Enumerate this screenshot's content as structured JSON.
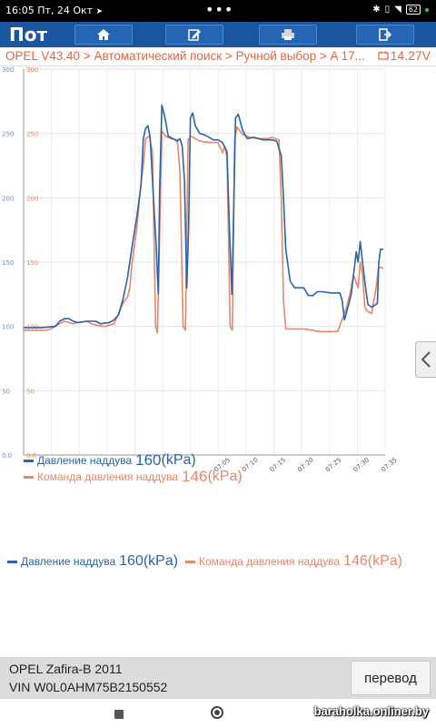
{
  "status_bar": {
    "time": "16:05",
    "date": "Пт, 24 Окт",
    "more": "•••",
    "battery": "62"
  },
  "header": {
    "title": "Пот",
    "buttons": [
      {
        "name": "home-icon"
      },
      {
        "name": "edit-icon"
      },
      {
        "name": "print-icon"
      },
      {
        "name": "exit-icon"
      }
    ],
    "bg_color": "#1a56a0"
  },
  "breadcrumb": {
    "path": "OPEL V43.40 > Автоматический поиск > Ручной выбор > A 17...",
    "voltage": "14.27V",
    "color": "#e8643c"
  },
  "chart_data": {
    "type": "line",
    "ylim": [
      0,
      300
    ],
    "y_ticks_left": [
      "300",
      "250",
      "200",
      "150",
      "100",
      "50",
      "0.0"
    ],
    "y_ticks_right": [
      "300",
      "250",
      "200",
      "150",
      "100",
      "50",
      "0.0"
    ],
    "x_ticks": [
      "07:05",
      "07:10",
      "07:15",
      "07:20",
      "07:25",
      "07:30",
      "07:35"
    ],
    "grid": true,
    "series": [
      {
        "name": "Давление наддува",
        "color": "#2a63aa",
        "points": [
          [
            0,
            99
          ],
          [
            4,
            99
          ],
          [
            7,
            100
          ],
          [
            8,
            104
          ],
          [
            9,
            106
          ],
          [
            10,
            106
          ],
          [
            11,
            104
          ],
          [
            12,
            103
          ],
          [
            14,
            104
          ],
          [
            16,
            104
          ],
          [
            17,
            102
          ],
          [
            19,
            103
          ],
          [
            20,
            105
          ],
          [
            21,
            109
          ],
          [
            22,
            121
          ],
          [
            23,
            138
          ],
          [
            24,
            162
          ],
          [
            25,
            184
          ],
          [
            26,
            210
          ],
          [
            26.5,
            246
          ],
          [
            27,
            254
          ],
          [
            27.5,
            256
          ],
          [
            28,
            247
          ],
          [
            28.6,
            208
          ],
          [
            29.3,
            165
          ],
          [
            29.8,
            125
          ],
          [
            30.1,
            205
          ],
          [
            30.6,
            272
          ],
          [
            31.3,
            262
          ],
          [
            32,
            248
          ],
          [
            33,
            246
          ],
          [
            34,
            244
          ],
          [
            34.6,
            246
          ],
          [
            35.1,
            240
          ],
          [
            35.6,
            213
          ],
          [
            36.1,
            130
          ],
          [
            36.5,
            175
          ],
          [
            36.9,
            262
          ],
          [
            37.4,
            266
          ],
          [
            38,
            256
          ],
          [
            39,
            250
          ],
          [
            40,
            249
          ],
          [
            42,
            245
          ],
          [
            43,
            245
          ],
          [
            44,
            243
          ],
          [
            45,
            236
          ],
          [
            45.6,
            170
          ],
          [
            46.1,
            125
          ],
          [
            46.5,
            192
          ],
          [
            46.9,
            262
          ],
          [
            47.5,
            265
          ],
          [
            48.5,
            252
          ],
          [
            49.5,
            246
          ],
          [
            51,
            247
          ],
          [
            53,
            245
          ],
          [
            55,
            245
          ],
          [
            56,
            244
          ],
          [
            57,
            233
          ],
          [
            57.5,
            200
          ],
          [
            58,
            160
          ],
          [
            59,
            135
          ],
          [
            60,
            130
          ],
          [
            62,
            130
          ],
          [
            63,
            124
          ],
          [
            64,
            124
          ],
          [
            65,
            127
          ],
          [
            66,
            127
          ],
          [
            68,
            126
          ],
          [
            69,
            126
          ],
          [
            70,
            126
          ],
          [
            70.5,
            120
          ],
          [
            71,
            105
          ],
          [
            72,
            118
          ],
          [
            72.5,
            125
          ],
          [
            73,
            140
          ],
          [
            73.6,
            158
          ],
          [
            74,
            150
          ],
          [
            74.5,
            166
          ],
          [
            75,
            150
          ],
          [
            75.6,
            132
          ],
          [
            76.2,
            117
          ],
          [
            77,
            115
          ],
          [
            78,
            117
          ],
          [
            78.3,
            118
          ],
          [
            78.6,
            150
          ],
          [
            79,
            160
          ],
          [
            79.6,
            160
          ]
        ]
      },
      {
        "name": "Команда давления наддува",
        "color": "#e8866a",
        "points": [
          [
            0,
            97
          ],
          [
            5,
            97
          ],
          [
            6,
            98
          ],
          [
            8,
            102
          ],
          [
            9,
            104
          ],
          [
            10,
            103
          ],
          [
            11,
            102
          ],
          [
            12,
            103
          ],
          [
            14,
            104
          ],
          [
            15,
            102
          ],
          [
            16,
            101
          ],
          [
            18,
            100
          ],
          [
            19,
            101
          ],
          [
            20,
            102
          ],
          [
            21,
            110
          ],
          [
            22,
            118
          ],
          [
            23,
            123
          ],
          [
            23.5,
            130
          ],
          [
            24,
            150
          ],
          [
            25,
            175
          ],
          [
            26,
            212
          ],
          [
            26.5,
            225
          ],
          [
            27,
            246
          ],
          [
            27.8,
            248
          ],
          [
            28.5,
            236
          ],
          [
            29.2,
            100
          ],
          [
            29.6,
            95
          ],
          [
            30.1,
            170
          ],
          [
            30.6,
            252
          ],
          [
            31.4,
            248
          ],
          [
            32.5,
            246
          ],
          [
            34,
            245
          ],
          [
            34.6,
            220
          ],
          [
            35.3,
            100
          ],
          [
            35.8,
            97
          ],
          [
            36.4,
            245
          ],
          [
            37,
            248
          ],
          [
            38,
            246
          ],
          [
            39,
            244
          ],
          [
            41,
            243
          ],
          [
            43,
            243
          ],
          [
            44,
            235
          ],
          [
            44.5,
            240
          ],
          [
            45,
            232
          ],
          [
            45.7,
            100
          ],
          [
            46.2,
            97
          ],
          [
            46.7,
            245
          ],
          [
            47.2,
            255
          ],
          [
            48.5,
            249
          ],
          [
            50,
            247
          ],
          [
            52,
            246
          ],
          [
            54,
            246
          ],
          [
            55,
            247
          ],
          [
            56.5,
            245
          ],
          [
            57,
            200
          ],
          [
            57.5,
            120
          ],
          [
            58,
            98
          ],
          [
            59,
            98
          ],
          [
            62,
            98
          ],
          [
            64,
            97
          ],
          [
            65,
            96
          ],
          [
            69,
            96
          ],
          [
            69.5,
            96
          ],
          [
            70,
            101
          ],
          [
            71.5,
            115
          ],
          [
            72.5,
            130
          ],
          [
            73,
            140
          ],
          [
            74,
            130
          ],
          [
            74.5,
            150
          ],
          [
            75,
            140
          ],
          [
            75.5,
            115
          ],
          [
            76,
            112
          ],
          [
            77,
            110
          ],
          [
            77.5,
            120
          ],
          [
            78,
            130
          ],
          [
            78.5,
            145
          ],
          [
            79,
            146
          ],
          [
            79.6,
            145
          ]
        ]
      }
    ]
  },
  "legend_inner": [
    {
      "label": "Давление наддува",
      "value": "160",
      "unit": "(kPa)"
    },
    {
      "label": "Команда давления наддува",
      "value": "146",
      "unit": "(kPa)"
    }
  ],
  "legend_outer": [
    {
      "label": "Давление наддува",
      "value": "160",
      "unit": "(kPa)"
    },
    {
      "label": "Команда давления наддува",
      "value": "146",
      "unit": "(kPa)"
    }
  ],
  "vehicle": {
    "model": "OPEL Zafira-B 2011",
    "vin": "VIN W0L0AHM75B2150552"
  },
  "translate_button": "перевод",
  "watermark": "baraholka.onliner.by"
}
